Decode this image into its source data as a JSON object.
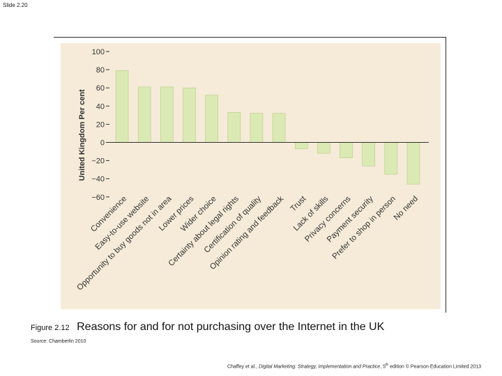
{
  "slide": {
    "label": "Slide 2.20"
  },
  "caption": {
    "figure_number": "Figure 2.12",
    "title": "Reasons for and for not purchasing over the Internet in the UK",
    "source": "Source: Chamberlin 2010"
  },
  "citation": {
    "prefix": "Chaffey et al., ",
    "book": "Digital Marketing: Strategy, Implementation and Practice",
    "edition_num": ", 5",
    "edition_sup": "th",
    "suffix": " edition © Pearson Education Limited 2013"
  },
  "colors": {
    "plot_background": "#f5ebd8",
    "bar_fill": "#dbe9b4",
    "bar_stroke": "#b9cc86",
    "axis": "#333333"
  },
  "chart_data": {
    "type": "bar",
    "title": "",
    "xlabel": "",
    "ylabel": "United Kingdom Per cent",
    "ylim": [
      -60,
      100
    ],
    "yticks": [
      100,
      80,
      60,
      40,
      20,
      0,
      -20,
      -40,
      -60
    ],
    "ytick_labels": [
      "100",
      "80",
      "60",
      "40",
      "20",
      "0",
      "−20",
      "−40",
      "−60"
    ],
    "categories": [
      "Convenience",
      "Easy-to-use website",
      "Opportunity to buy goods not in area",
      "Lower prices",
      "Wider choice",
      "Certainty about legal rights",
      "Certification of quality",
      "Opinion rating and feedback",
      "Trust",
      "Lack of skills",
      "Privacy concerns",
      "Payment security",
      "Prefer to shop in person",
      "No need"
    ],
    "values": [
      79,
      61,
      61,
      60,
      52,
      33,
      32,
      32,
      -7,
      -12,
      -17,
      -26,
      -35,
      -46
    ]
  }
}
